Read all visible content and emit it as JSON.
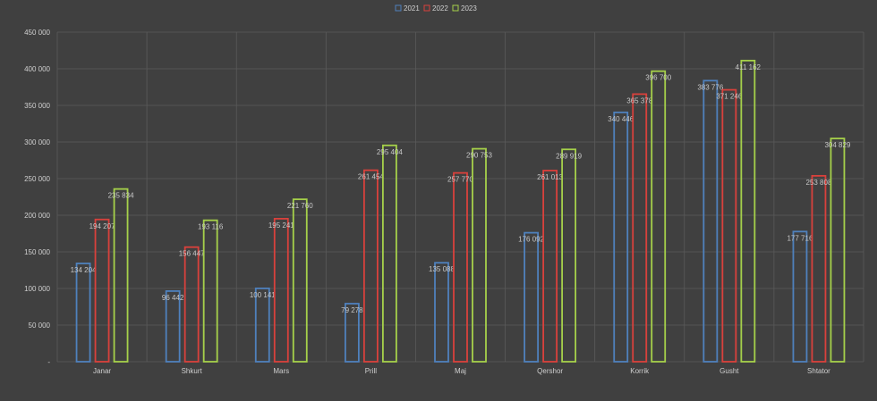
{
  "chart_data": {
    "type": "bar",
    "categories": [
      "Janar",
      "Shkurt",
      "Mars",
      "Prill",
      "Maj",
      "Qershor",
      "Korrik",
      "Gusht",
      "Shtator"
    ],
    "series": [
      {
        "name": "2021",
        "color": "#4F81BD",
        "values": [
          134204,
          96442,
          100141,
          79278,
          135088,
          176092,
          340446,
          383776,
          177716
        ],
        "labels": [
          "134 204",
          "96 442",
          "100 141",
          "79 278",
          "135 088",
          "176 092",
          "340 446",
          "383 776",
          "177 716"
        ]
      },
      {
        "name": "2022",
        "color": "#D9413C",
        "values": [
          194207,
          156447,
          195241,
          261454,
          257770,
          261013,
          365378,
          371246,
          253808
        ],
        "labels": [
          "194 207",
          "156 447",
          "195 241",
          "261 454",
          "257 770",
          "261 013",
          "365 378",
          "371 246",
          "253 808"
        ]
      },
      {
        "name": "2023",
        "color": "#A6D14A",
        "values": [
          235834,
          193116,
          221760,
          295404,
          290753,
          289919,
          396700,
          411162,
          304829
        ],
        "labels": [
          "235 834",
          "193 116",
          "221 760",
          "295 404",
          "290 753",
          "289 919",
          "396 700",
          "411 162",
          "304 829"
        ]
      }
    ],
    "yticks": [
      0,
      50000,
      100000,
      150000,
      200000,
      250000,
      300000,
      350000,
      400000,
      450000
    ],
    "ytick_labels": [
      "-",
      "50 000",
      "100 000",
      "150 000",
      "200 000",
      "250 000",
      "300 000",
      "350 000",
      "400 000",
      "450 000"
    ],
    "ylim": [
      0,
      450000
    ],
    "grid": true,
    "legend_position": "top-center"
  }
}
